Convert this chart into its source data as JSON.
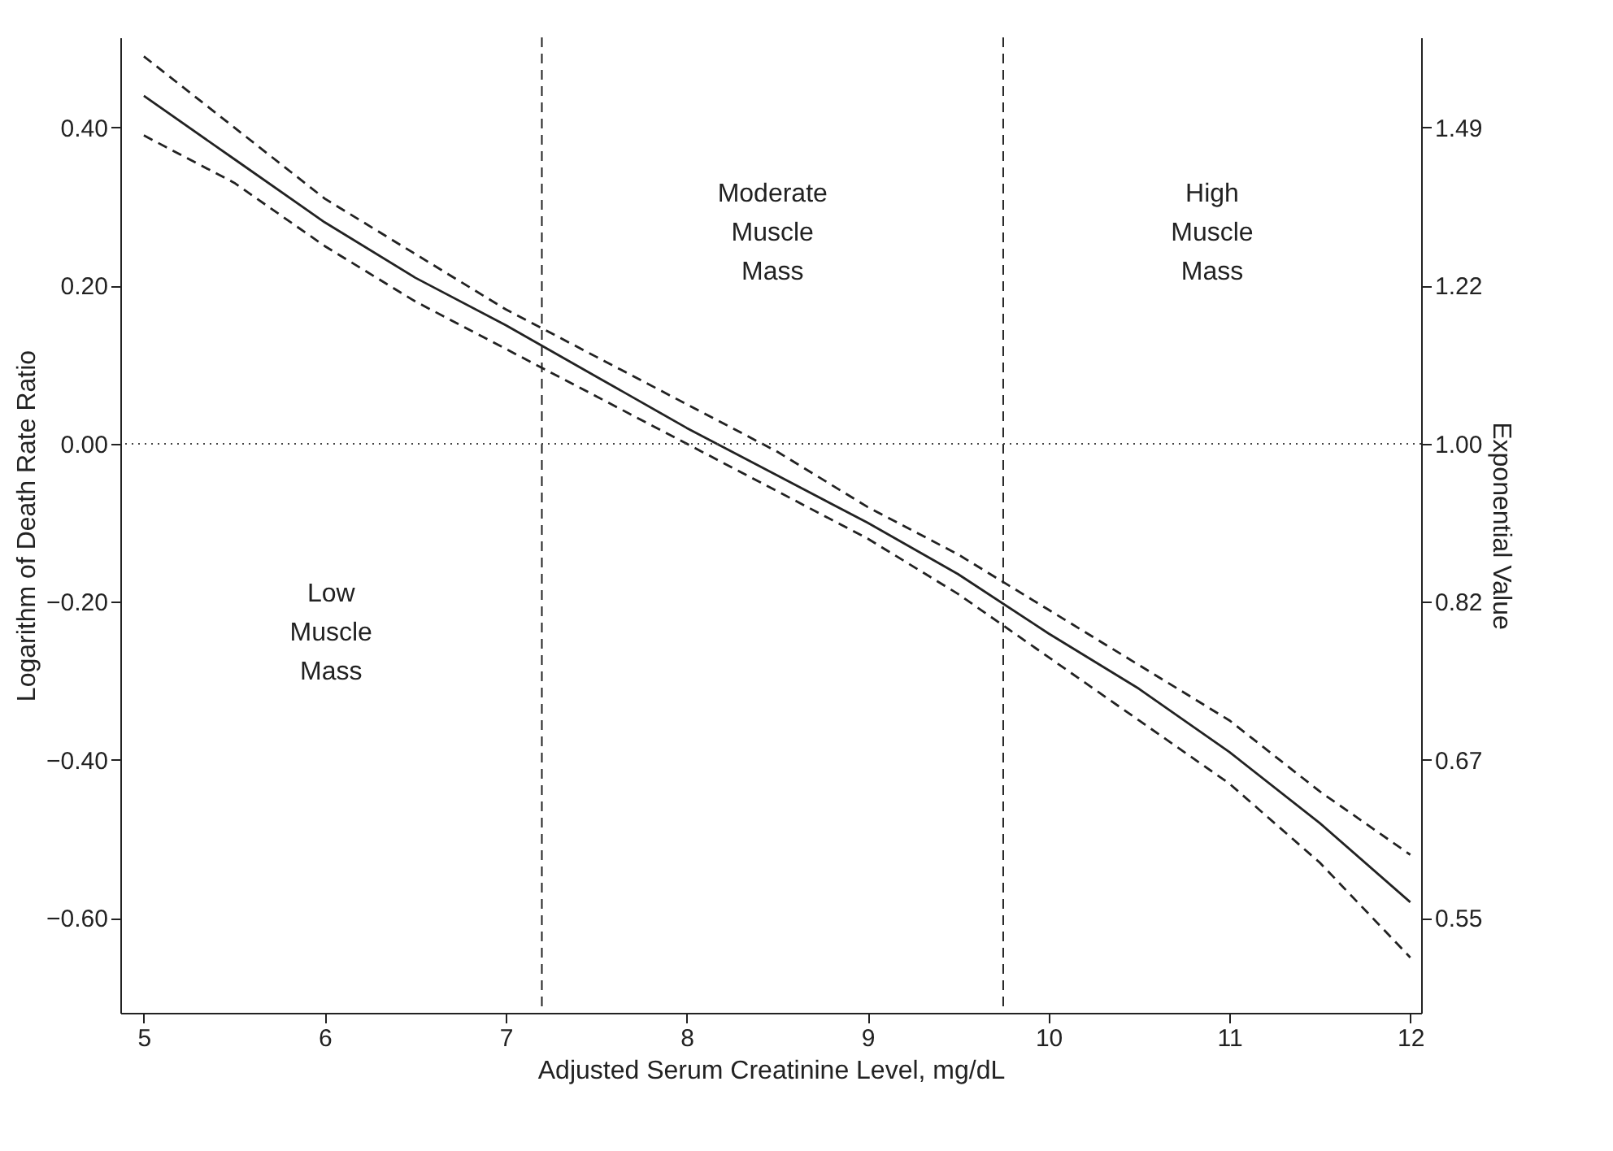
{
  "chart_data": {
    "type": "line",
    "xlabel": "Adjusted Serum Creatinine Level, mg/dL",
    "ylabel": "Logarithm of Death Rate Ratio",
    "y2label": "Exponential Value",
    "x": [
      5,
      5.5,
      6,
      6.5,
      7,
      7.5,
      8,
      8.5,
      9,
      9.5,
      10,
      10.5,
      11,
      11.5,
      12
    ],
    "series": [
      {
        "color": "#222222",
        "line_style": "solid",
        "values": [
          0.44,
          0.36,
          0.28,
          0.21,
          0.15,
          0.085,
          0.02,
          -0.04,
          -0.1,
          -0.165,
          -0.24,
          -0.31,
          -0.39,
          -0.48,
          -0.58
        ]
      },
      {
        "color": "#222222",
        "line_style": "dashed",
        "values": [
          0.49,
          0.4,
          0.31,
          0.24,
          0.17,
          0.11,
          0.05,
          -0.01,
          -0.08,
          -0.14,
          -0.21,
          -0.28,
          -0.35,
          -0.44,
          -0.52
        ]
      },
      {
        "color": "#222222",
        "line_style": "dashed",
        "values": [
          0.39,
          0.33,
          0.25,
          0.18,
          0.12,
          0.06,
          0.0,
          -0.06,
          -0.12,
          -0.19,
          -0.27,
          -0.35,
          -0.43,
          -0.53,
          -0.65
        ]
      }
    ],
    "xlim": [
      4.87,
      12.06
    ],
    "xticks": [
      5,
      6,
      7,
      8,
      9,
      10,
      11,
      12
    ],
    "ylim": [
      -0.72,
      0.514
    ],
    "yticks": [
      {
        "value": 0.4,
        "label": "0.40"
      },
      {
        "value": 0.2,
        "label": "0.20"
      },
      {
        "value": 0,
        "label": "0.00"
      },
      {
        "value": -0.2,
        "label": "−0.20"
      },
      {
        "value": -0.4,
        "label": "−0.40"
      },
      {
        "value": -0.6,
        "label": "−0.60"
      }
    ],
    "log": "y2",
    "y2lim": [
      0.4868,
      1.672
    ],
    "y2ticks": [
      {
        "value": 1.4918,
        "label": "1.49"
      },
      {
        "value": 1.2214,
        "label": "1.22"
      },
      {
        "value": 1.0,
        "label": "1.00"
      },
      {
        "value": 0.8187,
        "label": "0.82"
      },
      {
        "value": 0.6703,
        "label": "0.67"
      },
      {
        "value": 0.5488,
        "label": "0.55"
      }
    ],
    "ref_lines": [
      {
        "axis": "x",
        "value": 7.2,
        "color": "#222222",
        "line_style": "dashed"
      },
      {
        "axis": "x",
        "value": 9.75,
        "color": "#222222",
        "line_style": "dashed"
      },
      {
        "axis": "y2",
        "value": 1.0,
        "color": "#444444",
        "line_style": "dotted"
      }
    ],
    "annotations": [
      "Low Muscle Mass",
      "Moderate Muscle Mass",
      "High Muscle Mass"
    ],
    "grid": false
  }
}
